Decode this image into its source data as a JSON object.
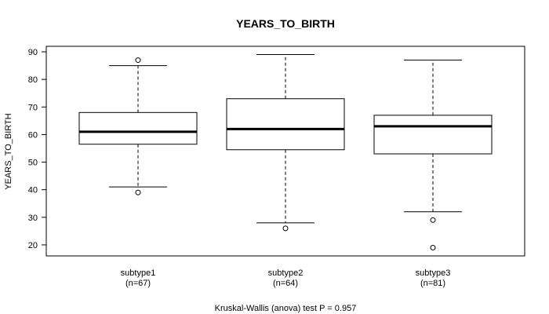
{
  "chart_data": {
    "type": "boxplot",
    "title": "YEARS_TO_BIRTH",
    "ylabel": "YEARS_TO_BIRTH",
    "xlabel": "",
    "ylim": [
      16,
      92
    ],
    "y_ticks": [
      20,
      30,
      40,
      50,
      60,
      70,
      80,
      90
    ],
    "grid": false,
    "footer": "Kruskal-Wallis (anova) test P = 0.957",
    "groups": [
      {
        "name": "subtype1",
        "n_label": "(n=67)",
        "whisker_low": 41,
        "q1": 56.5,
        "median": 61,
        "q3": 68,
        "whisker_high": 85,
        "outliers": [
          39,
          87
        ]
      },
      {
        "name": "subtype2",
        "n_label": "(n=64)",
        "whisker_low": 28,
        "q1": 54.5,
        "median": 62,
        "q3": 73,
        "whisker_high": 89,
        "outliers": [
          26
        ]
      },
      {
        "name": "subtype3",
        "n_label": "(n=81)",
        "whisker_low": 32,
        "q1": 53,
        "median": 63,
        "q3": 67,
        "whisker_high": 87,
        "outliers": [
          29,
          19
        ]
      }
    ]
  }
}
